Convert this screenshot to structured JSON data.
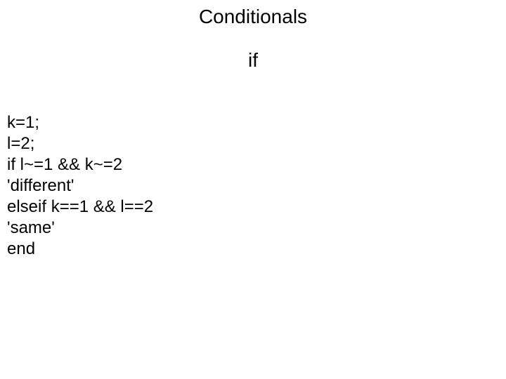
{
  "slide": {
    "title": "Conditionals",
    "subtitle": "if",
    "background_color": "#ffffff",
    "text_color": "#000000",
    "title_fontsize": 28,
    "subtitle_fontsize": 28,
    "code_fontsize": 24,
    "font_family": "Arial",
    "code": {
      "lines": [
        "k=1;",
        "l=2;",
        "if l~=1 && k~=2",
        "'different'",
        "elseif k==1 && l==2",
        "'same'",
        "end"
      ]
    }
  }
}
